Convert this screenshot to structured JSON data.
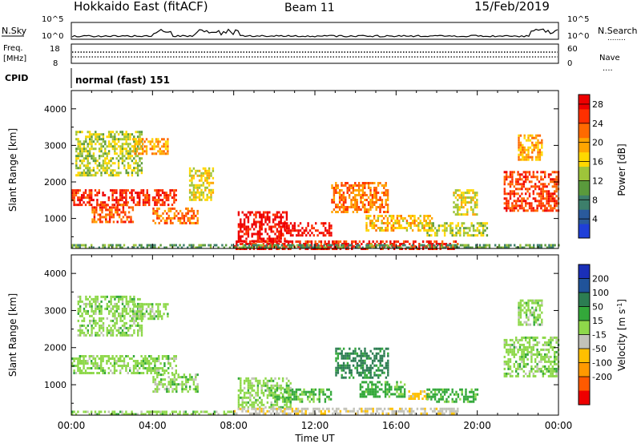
{
  "header": {
    "station": "Hokkaido East (fitACF)",
    "beam": "Beam 11",
    "date": "15/Feb/2019"
  },
  "top_panels": {
    "nsky_label": "N.Sky",
    "nsearch_label": "N.Search",
    "nsearch_marker": "........",
    "freq_label_1": "Freq.",
    "freq_label_2": "[MHz]",
    "nave_label": "Nave",
    "nave_marker": "....",
    "cpid_label": "CPID",
    "cpid_value": "normal (fast) 151",
    "noise_tick_high": "10^5",
    "noise_tick_low": "10^0",
    "freq_tick_high": "18",
    "freq_tick_low": "8",
    "nave_tick_high": "60",
    "nave_tick_low": "0"
  },
  "chart_data": [
    {
      "type": "heatmap",
      "name": "Power",
      "xlabel": "Time UT",
      "ylabel": "Slant Range [km]",
      "x_ticks": [
        "00:00",
        "04:00",
        "08:00",
        "12:00",
        "16:00",
        "20:00",
        "00:00"
      ],
      "xlim_hours": [
        0,
        24
      ],
      "ylim": [
        180,
        4500
      ],
      "y_ticks": [
        1000,
        2000,
        3000,
        4000
      ],
      "colorbar": {
        "label": "Power [dB]",
        "ticks": [
          4,
          8,
          12,
          16,
          20,
          24,
          28
        ],
        "range": [
          0,
          30
        ],
        "colors": [
          "#1f3fd8",
          "#2a5a9c",
          "#3d7f6b",
          "#5a9a3c",
          "#9ec43a",
          "#ffd800",
          "#ffa500",
          "#ff6a00",
          "#ff3000",
          "#ee0000"
        ]
      },
      "regions": [
        {
          "t0": 0.0,
          "t1": 5.2,
          "r0": 1350,
          "r1": 1800,
          "value": 26
        },
        {
          "t0": 0.2,
          "t1": 3.5,
          "r0": 2200,
          "r1": 3400,
          "value": 14
        },
        {
          "t0": 1.0,
          "t1": 3.0,
          "r0": 900,
          "r1": 1400,
          "value": 24
        },
        {
          "t0": 3.0,
          "t1": 4.8,
          "r0": 2800,
          "r1": 3200,
          "value": 20
        },
        {
          "t0": 4.0,
          "t1": 6.2,
          "r0": 900,
          "r1": 1300,
          "value": 22
        },
        {
          "t0": 5.8,
          "t1": 7.0,
          "r0": 1500,
          "r1": 2400,
          "value": 16
        },
        {
          "t0": 8.2,
          "t1": 10.6,
          "r0": 400,
          "r1": 1200,
          "value": 29
        },
        {
          "t0": 10.2,
          "t1": 12.8,
          "r0": 550,
          "r1": 900,
          "value": 28
        },
        {
          "t0": 8.0,
          "t1": 19.0,
          "r0": 200,
          "r1": 400,
          "value": 27
        },
        {
          "t0": 12.8,
          "t1": 15.6,
          "r0": 1200,
          "r1": 2000,
          "value": 22
        },
        {
          "t0": 14.5,
          "t1": 17.8,
          "r0": 650,
          "r1": 1100,
          "value": 18
        },
        {
          "t0": 17.5,
          "t1": 20.5,
          "r0": 550,
          "r1": 900,
          "value": 14
        },
        {
          "t0": 18.8,
          "t1": 20.0,
          "r0": 1100,
          "r1": 1800,
          "value": 16
        },
        {
          "t0": 21.3,
          "t1": 24.0,
          "r0": 1200,
          "r1": 2300,
          "value": 25
        },
        {
          "t0": 22.0,
          "t1": 23.2,
          "r0": 2600,
          "r1": 3300,
          "value": 20
        },
        {
          "t0": 0.0,
          "t1": 24.0,
          "r0": 180,
          "r1": 300,
          "value": 10
        }
      ]
    },
    {
      "type": "heatmap",
      "name": "Velocity",
      "xlabel": "Time UT",
      "ylabel": "Slant Range [km]",
      "x_ticks": [
        "00:00",
        "04:00",
        "08:00",
        "12:00",
        "16:00",
        "20:00",
        "00:00"
      ],
      "xlim_hours": [
        0,
        24
      ],
      "ylim": [
        180,
        4500
      ],
      "y_ticks": [
        1000,
        2000,
        3000,
        4000
      ],
      "colorbar": {
        "label": "Velocity [m s^-1]",
        "ticks": [
          200,
          100,
          50,
          15,
          -15,
          -50,
          -100,
          -200
        ],
        "colors": [
          "#1a2fb8",
          "#20539a",
          "#2c7d52",
          "#33a83a",
          "#8ed84a",
          "#c2c2b8",
          "#ffc000",
          "#ff9a00",
          "#ff5a00",
          "#ee0000"
        ]
      },
      "regions": [
        {
          "t0": 0.0,
          "t1": 5.2,
          "r0": 1300,
          "r1": 1800,
          "value": 0
        },
        {
          "t0": 0.3,
          "t1": 3.5,
          "r0": 2300,
          "r1": 3400,
          "value": 0
        },
        {
          "t0": 3.0,
          "t1": 4.8,
          "r0": 2800,
          "r1": 3200,
          "value": 0
        },
        {
          "t0": 4.0,
          "t1": 6.2,
          "r0": 800,
          "r1": 1300,
          "value": 0
        },
        {
          "t0": 8.2,
          "t1": 10.8,
          "r0": 400,
          "r1": 1200,
          "value": 0
        },
        {
          "t0": 10.0,
          "t1": 12.8,
          "r0": 550,
          "r1": 900,
          "value": 25
        },
        {
          "t0": 13.0,
          "t1": 15.6,
          "r0": 1200,
          "r1": 2000,
          "value": 60
        },
        {
          "t0": 14.2,
          "t1": 16.4,
          "r0": 650,
          "r1": 1100,
          "value": 30
        },
        {
          "t0": 16.6,
          "t1": 17.6,
          "r0": 600,
          "r1": 850,
          "value": -60
        },
        {
          "t0": 17.5,
          "t1": 20.0,
          "r0": 550,
          "r1": 900,
          "value": 30
        },
        {
          "t0": 8.0,
          "t1": 19.0,
          "r0": 220,
          "r1": 380,
          "value": -40
        },
        {
          "t0": 0.0,
          "t1": 8.0,
          "r0": 180,
          "r1": 300,
          "value": 0
        },
        {
          "t0": 21.3,
          "t1": 24.0,
          "r0": 1200,
          "r1": 2300,
          "value": 0
        },
        {
          "t0": 22.0,
          "t1": 23.2,
          "r0": 2600,
          "r1": 3300,
          "value": 0
        }
      ]
    }
  ]
}
